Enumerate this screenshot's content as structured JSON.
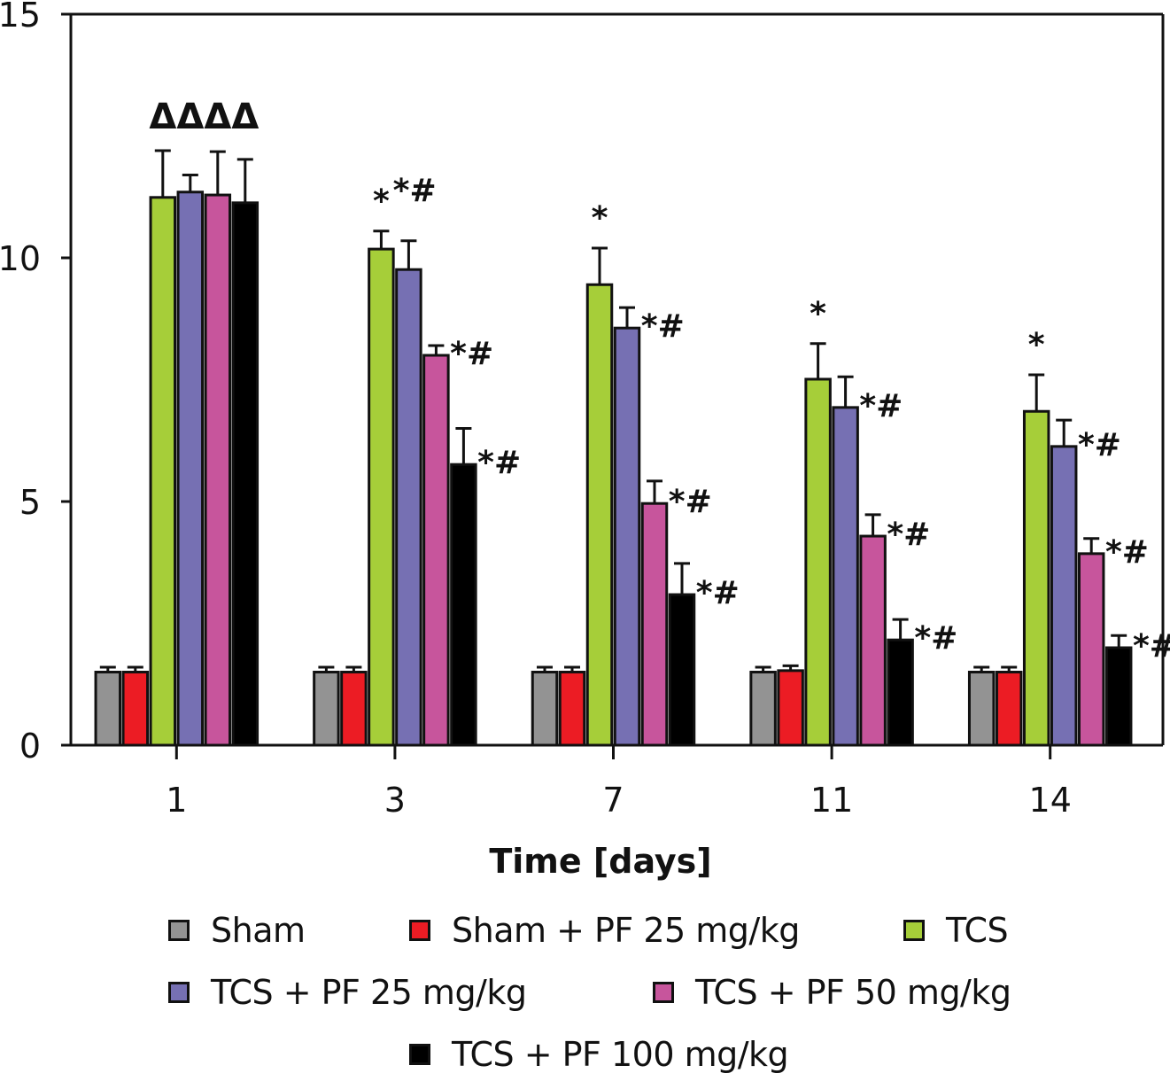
{
  "chart_data": {
    "type": "bar",
    "title": "",
    "xlabel": "Time [days]",
    "ylabel": "",
    "ylim": [
      0,
      15
    ],
    "yticks": [
      0,
      5,
      10,
      15
    ],
    "grid": false,
    "legend_position": "bottom",
    "categories": [
      "1",
      "3",
      "7",
      "11",
      "14"
    ],
    "series": [
      {
        "name": "Sham",
        "color": "#939393",
        "values": [
          1.5,
          1.5,
          1.5,
          1.5,
          1.5
        ],
        "errors": [
          0.1,
          0.1,
          0.1,
          0.1,
          0.1
        ]
      },
      {
        "name": "Sham + PF 25 mg/kg",
        "color": "#ec1c24",
        "values": [
          1.5,
          1.5,
          1.5,
          1.53,
          1.5
        ],
        "errors": [
          0.1,
          0.1,
          0.1,
          0.1,
          0.1
        ]
      },
      {
        "name": "TCS",
        "color": "#a6ce39",
        "values": [
          11.24,
          10.18,
          9.45,
          7.51,
          6.85
        ],
        "errors": [
          0.96,
          0.37,
          0.75,
          0.73,
          0.75
        ]
      },
      {
        "name": "TCS + PF 25 mg/kg",
        "color": "#7670b3",
        "values": [
          11.35,
          9.76,
          8.56,
          6.93,
          6.13
        ],
        "errors": [
          0.35,
          0.59,
          0.42,
          0.63,
          0.54
        ]
      },
      {
        "name": "TCS + PF 50 mg/kg",
        "color": "#c7559c",
        "values": [
          11.29,
          8.0,
          4.96,
          4.29,
          3.93
        ],
        "errors": [
          0.89,
          0.2,
          0.46,
          0.44,
          0.31
        ]
      },
      {
        "name": "TCS + PF 100 mg/kg",
        "color": "#000000",
        "values": [
          11.13,
          5.76,
          3.09,
          2.16,
          2.0
        ],
        "errors": [
          0.89,
          0.74,
          0.64,
          0.42,
          0.25
        ]
      }
    ],
    "annotations": [
      {
        "category": "1",
        "series": "TCS",
        "text": "Δ"
      },
      {
        "category": "1",
        "series": "TCS + PF 25 mg/kg",
        "text": "Δ"
      },
      {
        "category": "1",
        "series": "TCS + PF 50 mg/kg",
        "text": "Δ"
      },
      {
        "category": "1",
        "series": "TCS + PF 100 mg/kg",
        "text": "Δ"
      },
      {
        "category": "3",
        "series": "TCS",
        "text": "*"
      },
      {
        "category": "3",
        "series": "TCS + PF 25 mg/kg",
        "text": "*#"
      },
      {
        "category": "3",
        "series": "TCS + PF 50 mg/kg",
        "text": "*#"
      },
      {
        "category": "3",
        "series": "TCS + PF 100 mg/kg",
        "text": "*#"
      },
      {
        "category": "7",
        "series": "TCS",
        "text": "*"
      },
      {
        "category": "7",
        "series": "TCS + PF 25 mg/kg",
        "text": "*#"
      },
      {
        "category": "7",
        "series": "TCS + PF 50 mg/kg",
        "text": "*#"
      },
      {
        "category": "7",
        "series": "TCS + PF 100 mg/kg",
        "text": "*#"
      },
      {
        "category": "11",
        "series": "TCS",
        "text": "*"
      },
      {
        "category": "11",
        "series": "TCS + PF 25 mg/kg",
        "text": "*#"
      },
      {
        "category": "11",
        "series": "TCS + PF 50 mg/kg",
        "text": "*#"
      },
      {
        "category": "11",
        "series": "TCS + PF 100 mg/kg",
        "text": "*#"
      },
      {
        "category": "14",
        "series": "TCS",
        "text": "*"
      },
      {
        "category": "14",
        "series": "TCS + PF 25 mg/kg",
        "text": "*#"
      },
      {
        "category": "14",
        "series": "TCS + PF 50 mg/kg",
        "text": "*#"
      },
      {
        "category": "14",
        "series": "TCS + PF 100 mg/kg",
        "text": "*#"
      }
    ]
  }
}
